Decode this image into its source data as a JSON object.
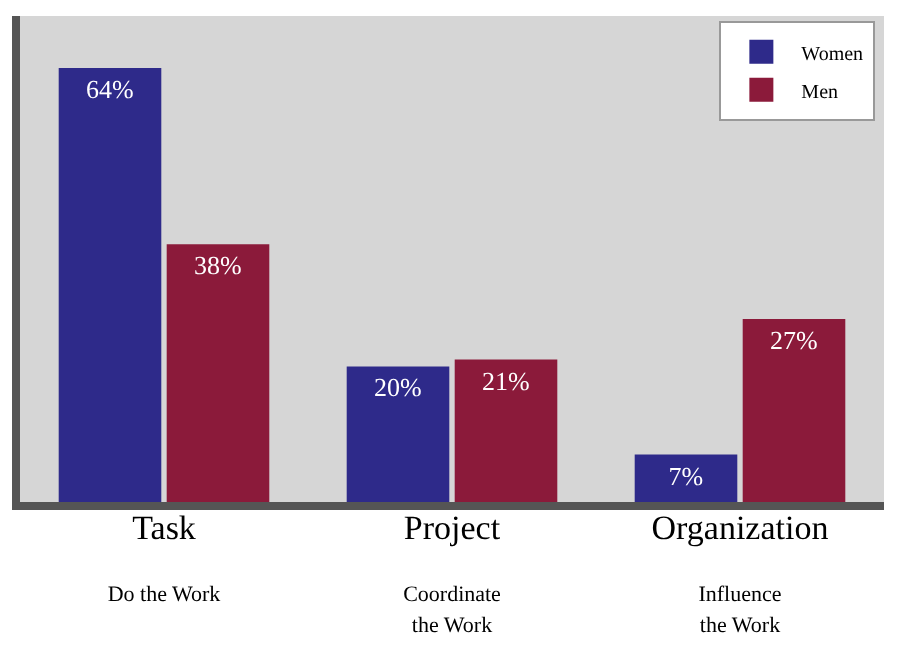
{
  "chart_data": {
    "type": "bar",
    "categories": [
      "Task\nDo the Work",
      "Project\nCoordinate\nthe Work",
      "Organization\nInfluence\nthe Work"
    ],
    "series": [
      {
        "name": "Women",
        "color": "#2e2a8a",
        "values": [
          64,
          20,
          7
        ],
        "value_labels": [
          "64%",
          "20%",
          "7%"
        ]
      },
      {
        "name": "Men",
        "color": "#8b1a3a",
        "values": [
          38,
          21,
          27
        ],
        "value_labels": [
          "38%",
          "21%",
          "27%"
        ]
      }
    ],
    "legend": "top right",
    "grid": false
  }
}
